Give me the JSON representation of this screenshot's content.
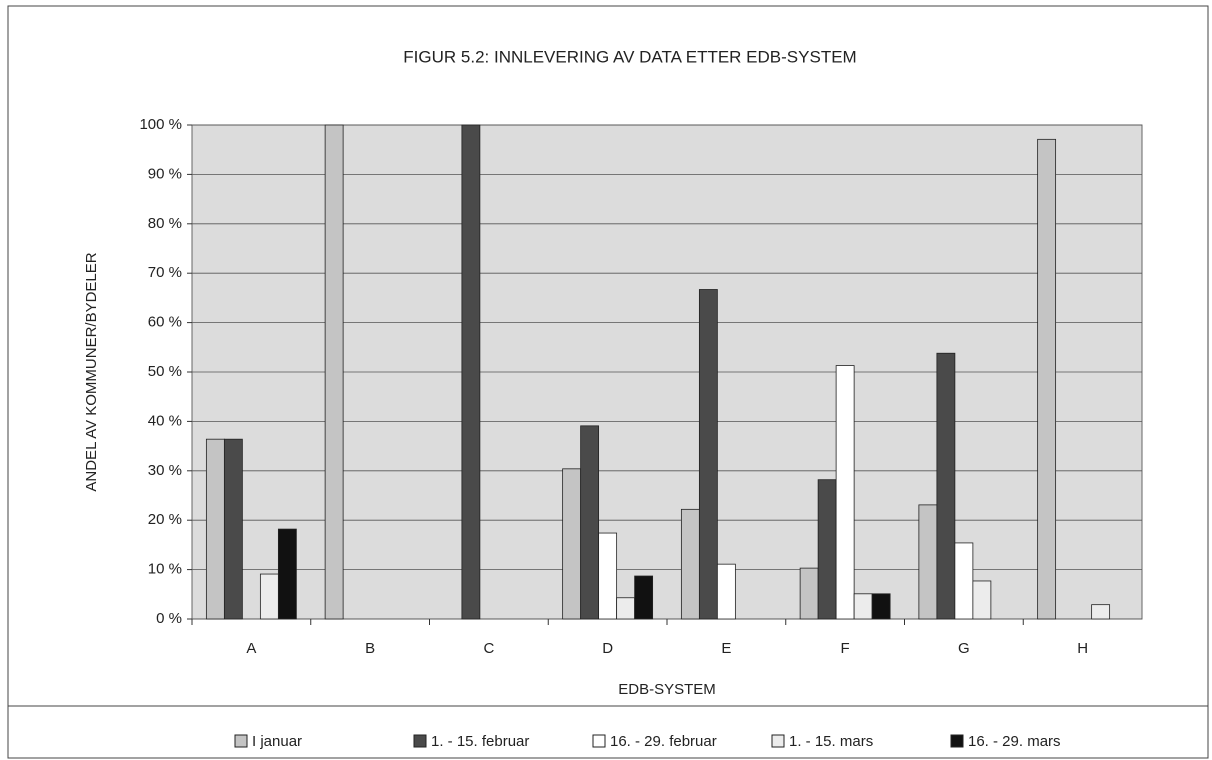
{
  "chart_data": {
    "type": "bar",
    "title": "FIGUR 5.2: INNLEVERING AV DATA  ETTER EDB-SYSTEM",
    "x_label": "EDB-SYSTEM",
    "y_label": "ANDEL AV KOMMUNER/BYDELER",
    "categories": [
      "A",
      "B",
      "C",
      "D",
      "E",
      "F",
      "G",
      "H"
    ],
    "series": [
      {
        "name": "I januar",
        "color": "#c4c4c4",
        "values": [
          36.4,
          100,
          0,
          30.4,
          22.2,
          10.3,
          23.1,
          97.1
        ]
      },
      {
        "name": "1. - 15. februar",
        "color": "#4a4a4a",
        "values": [
          36.4,
          0,
          100,
          39.1,
          66.7,
          28.2,
          53.8,
          0
        ]
      },
      {
        "name": "16. - 29. februar",
        "color": "#ffffff",
        "values": [
          0,
          0,
          0,
          17.4,
          11.1,
          51.3,
          15.4,
          0
        ]
      },
      {
        "name": "1. - 15. mars",
        "color": "#ececec",
        "values": [
          9.1,
          0,
          0,
          4.3,
          0,
          5.1,
          7.7,
          2.9
        ]
      },
      {
        "name": "16. - 29. mars",
        "color": "#111111",
        "values": [
          18.2,
          0,
          0,
          8.7,
          0,
          5.1,
          0,
          0
        ]
      }
    ],
    "ylim": [
      0,
      100
    ],
    "yticks": [
      {
        "value": 0,
        "label": "0 %"
      },
      {
        "value": 10,
        "label": "10 %"
      },
      {
        "value": 20,
        "label": "20 %"
      },
      {
        "value": 30,
        "label": "30 %"
      },
      {
        "value": 40,
        "label": "40 %"
      },
      {
        "value": 50,
        "label": "50 %"
      },
      {
        "value": 60,
        "label": "60 %"
      },
      {
        "value": 70,
        "label": "70 %"
      },
      {
        "value": 80,
        "label": "80 %"
      },
      {
        "value": 90,
        "label": "90 %"
      },
      {
        "value": 100,
        "label": "100 %"
      }
    ],
    "grid": true,
    "legend": "bottom"
  }
}
